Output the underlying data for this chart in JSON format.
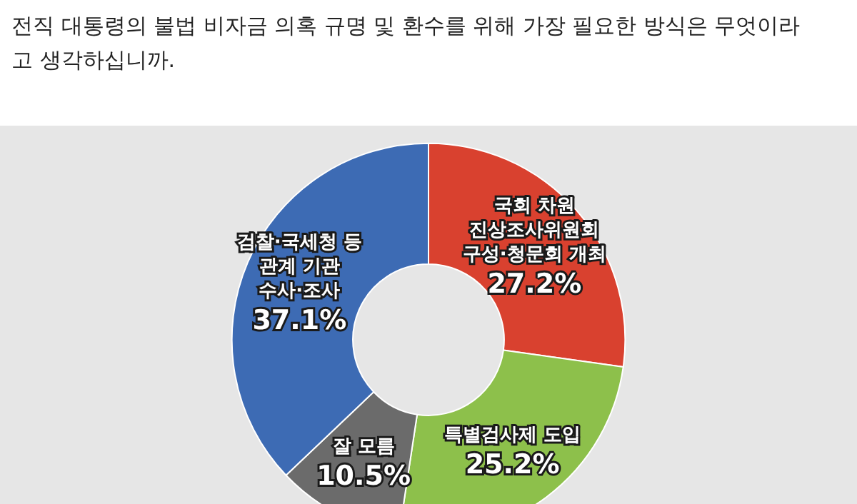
{
  "chart_data": {
    "type": "donut",
    "title": "전직 대통령의 불법 비자금 의혹 규명 및 환수를 위해 가장 필요한 방식은 무엇이라고 생각하십니까.",
    "categories": [
      "국회 차원 진상조사위원회 구성·청문회 개최",
      "특별검사제 도입",
      "잘 모름",
      "검찰·국세청 등 관계 기관 수사·조사"
    ],
    "values": [
      27.2,
      25.2,
      10.5,
      37.1
    ],
    "value_labels": [
      "27.2%",
      "25.2%",
      "10.5%",
      "37.1%"
    ],
    "colors": [
      "#d9412f",
      "#8dc04b",
      "#6b6b6b",
      "#3d6bb4"
    ],
    "legend": false
  }
}
